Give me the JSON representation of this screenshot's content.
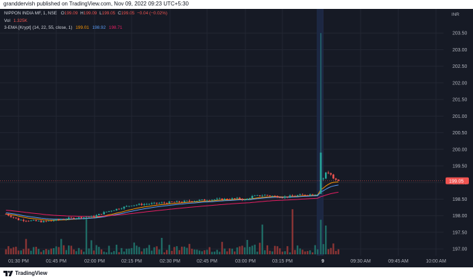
{
  "header": {
    "publish_line": "granddervish published on TradingView.com, Nov 09, 2022 09:23 UTC+5:30"
  },
  "legend": {
    "symbol": "NIPPON INDIA MF, 1, NSE",
    "ohlc": [
      {
        "key": "O",
        "value": "199.09"
      },
      {
        "key": "H",
        "value": "199.09"
      },
      {
        "key": "L",
        "value": "199.05"
      },
      {
        "key": "C",
        "value": "199.05"
      }
    ],
    "change": "−0.04 (−0.02%)",
    "vol_label": "Vol",
    "vol_value": "1.325K",
    "ema_label": "3-EMA [Krypt] (14, 22, 55, close, 1)",
    "ema_values": [
      "199.01",
      "198.92",
      "198.71"
    ]
  },
  "currency_label": "INR",
  "footer": {
    "logo_text": "TradingView",
    "logo_icon": "tradingview-logo-icon"
  },
  "colors": {
    "background": "#161a25",
    "up": "#26a69a",
    "down": "#ef5350",
    "up_volume": "#1f6b65",
    "down_volume": "#8c3535",
    "ema_fast": "#ff9800",
    "ema_mid": "#5b9cf6",
    "ema_slow": "#e91e63",
    "price_label_bg": "#ef5350"
  },
  "chart_data": {
    "type": "candlestick",
    "instrument": "NIPPON INDIA MF",
    "exchange": "NSE",
    "interval_minutes": 1,
    "y_ticks": [
      197.0,
      197.5,
      198.0,
      198.5,
      199.0,
      199.5,
      200.0,
      200.5,
      201.0,
      201.5,
      202.0,
      202.5,
      203.0,
      203.5
    ],
    "y_range": [
      196.9,
      204.0
    ],
    "x_ticks": [
      "01:30 PM",
      "01:45 PM",
      "02:00 PM",
      "02:15 PM",
      "02:30 PM",
      "02:45 PM",
      "03:00 PM",
      "03:15 PM",
      "9",
      "09:30 AM",
      "09:45 AM",
      "10:00 AM"
    ],
    "last_price": "199.05",
    "session1": {
      "start": "01:25 PM",
      "end": "03:29 PM",
      "start_price": 198.05,
      "close_price": 198.66,
      "waypoints": [
        [
          "01:25 PM",
          198.05
        ],
        [
          "01:30 PM",
          197.88
        ],
        [
          "01:40 PM",
          197.82
        ],
        [
          "01:50 PM",
          197.92
        ],
        [
          "02:00 PM",
          197.98
        ],
        [
          "02:05 PM",
          198.12
        ],
        [
          "02:15 PM",
          198.32
        ],
        [
          "02:30 PM",
          198.4
        ],
        [
          "02:45 PM",
          198.48
        ],
        [
          "02:58 PM",
          198.52
        ],
        [
          "03:00 PM",
          198.47
        ],
        [
          "03:03 PM",
          198.58
        ],
        [
          "03:08 PM",
          198.62
        ],
        [
          "03:15 PM",
          198.56
        ],
        [
          "03:22 PM",
          198.62
        ],
        [
          "03:29 PM",
          198.66
        ]
      ]
    },
    "session2": {
      "date_label": "9",
      "bars": [
        {
          "o": 198.66,
          "h": 203.5,
          "l": 198.66,
          "c": 199.9
        },
        {
          "o": 199.1,
          "h": 199.15,
          "l": 199.05,
          "c": 199.12
        },
        {
          "o": 199.12,
          "h": 199.32,
          "l": 199.1,
          "c": 199.3
        },
        {
          "o": 199.3,
          "h": 199.35,
          "l": 199.25,
          "c": 199.28
        },
        {
          "o": 199.28,
          "h": 199.3,
          "l": 199.2,
          "c": 199.24
        },
        {
          "o": 199.24,
          "h": 199.26,
          "l": 199.1,
          "c": 199.12
        },
        {
          "o": 199.12,
          "h": 199.14,
          "l": 199.06,
          "c": 199.08
        },
        {
          "o": 199.09,
          "h": 199.09,
          "l": 199.05,
          "c": 199.05
        }
      ]
    },
    "ema": [
      {
        "name": "EMA 14",
        "value": 199.01,
        "color": "#ff9800"
      },
      {
        "name": "EMA 22",
        "value": 198.92,
        "color": "#5b9cf6"
      },
      {
        "name": "EMA 55",
        "value": 198.71,
        "color": "#e91e63"
      }
    ],
    "volume": {
      "last": "1.325K",
      "peak_bars": [
        {
          "time": "01:33 PM",
          "rel": 0.32
        },
        {
          "time": "01:57 PM",
          "rel": 0.74
        },
        {
          "time": "03:01 PM",
          "rel": 0.3
        },
        {
          "time": "03:07 PM",
          "rel": 0.62
        },
        {
          "time": "03:19 PM",
          "rel": 0.94
        },
        {
          "time": "09:15 AM",
          "rel": 0.72
        },
        {
          "time": "09:17 AM",
          "rel": 0.6
        }
      ]
    }
  }
}
